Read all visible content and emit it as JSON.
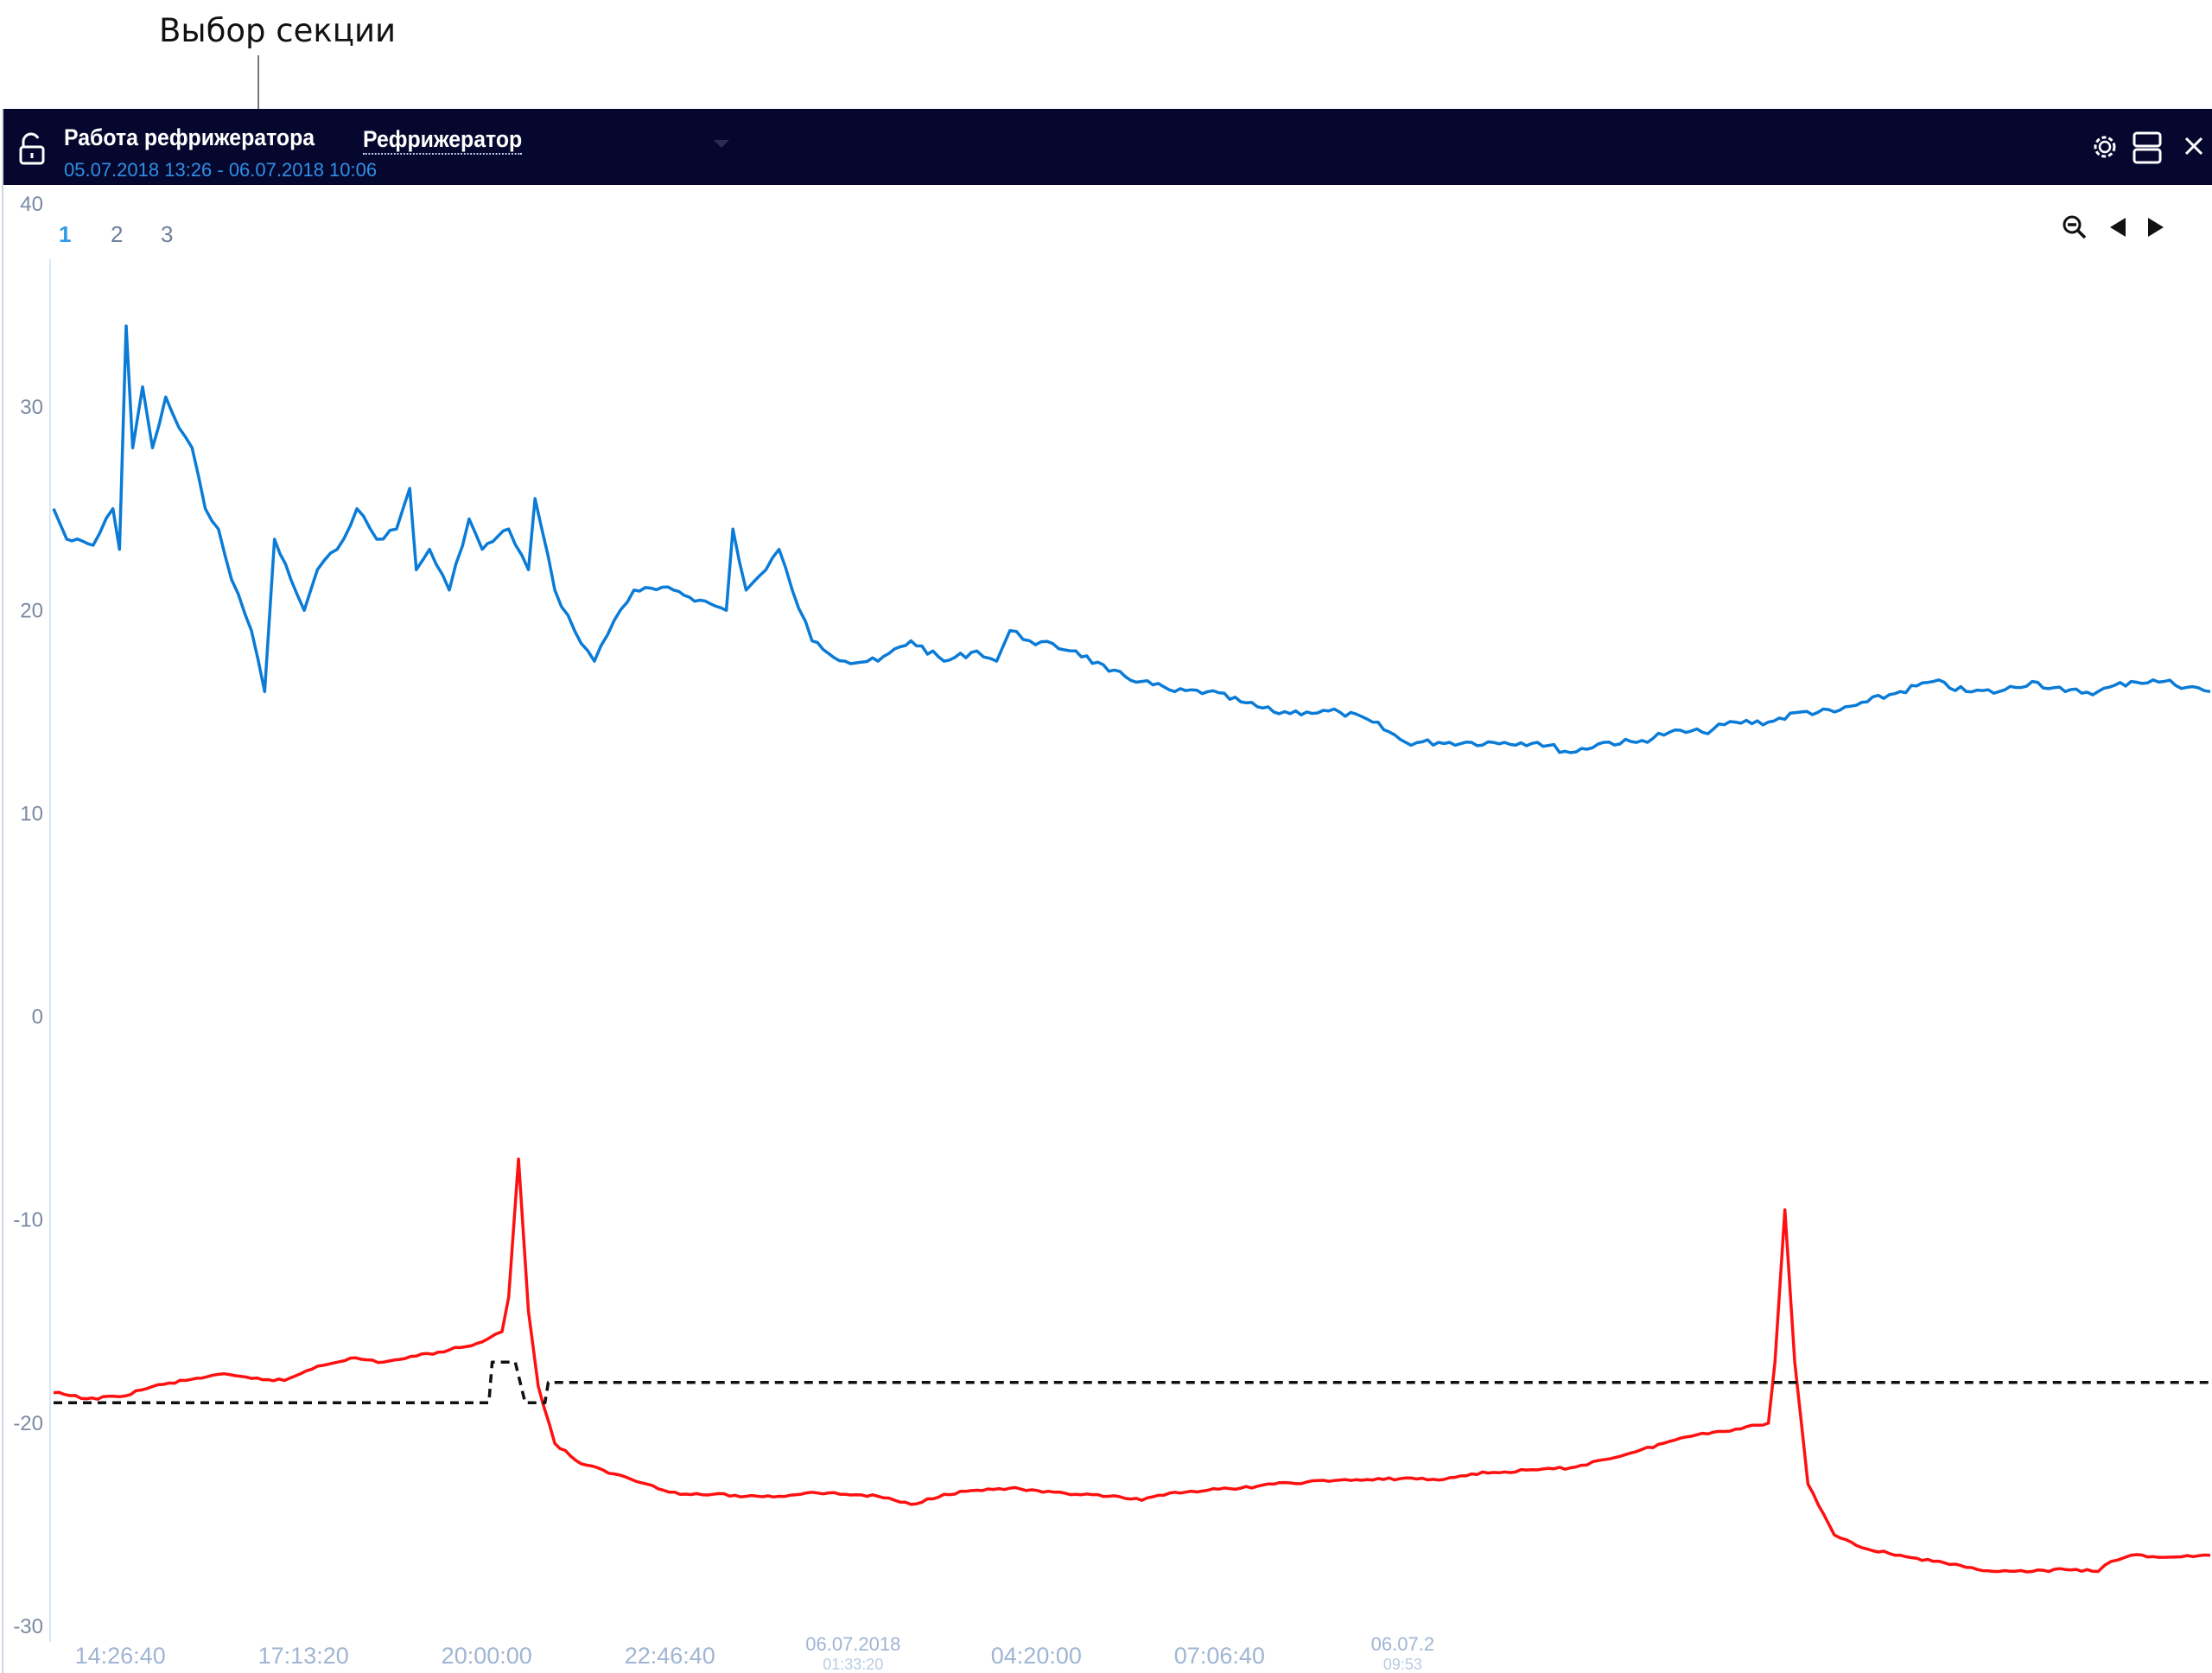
{
  "annotation": {
    "text": "Выбор секции"
  },
  "header": {
    "title": "Работа рефрижератора",
    "date_range": "05.07.2018 13:26 - 06.07.2018 10:06",
    "selector_value": "Рефрижератор",
    "icons": [
      "unlock-icon",
      "settings-icon",
      "layout-icon",
      "close-icon"
    ]
  },
  "sections": [
    "1",
    "2",
    "3"
  ],
  "active_section": "1",
  "tools": [
    "zoom-out-icon",
    "prev-arrow-icon",
    "next-arrow-icon"
  ],
  "colors": {
    "blue": "#0a7bd6",
    "red": "#ff1010",
    "dash": "#111111",
    "titlebar": "#06072e"
  },
  "chart_data": {
    "type": "line",
    "ylim": [
      -30,
      40
    ],
    "y_ticks": [
      "40",
      "30",
      "20",
      "10",
      "0",
      "-10",
      "-20",
      "-30"
    ],
    "x_ticks": [
      {
        "label": "14:26:40"
      },
      {
        "label": "17:13:20"
      },
      {
        "label": "20:00:00"
      },
      {
        "label": "22:46:40"
      },
      {
        "label": "06.07.2018",
        "sub": "01:33:20"
      },
      {
        "label": "04:20:00"
      },
      {
        "label": "07:06:40"
      },
      {
        "label": "06.07.2",
        "sub": "09:53"
      }
    ],
    "x_unit": "hours since 05.07.2018 13:26",
    "series": [
      {
        "color": "#0a7bd6",
        "points": [
          [
            0,
            25
          ],
          [
            0.2,
            23.5
          ],
          [
            0.6,
            23.2
          ],
          [
            0.9,
            25
          ],
          [
            1.0,
            23
          ],
          [
            1.1,
            34
          ],
          [
            1.2,
            28
          ],
          [
            1.35,
            31
          ],
          [
            1.5,
            28
          ],
          [
            1.7,
            30.5
          ],
          [
            1.9,
            29
          ],
          [
            2.1,
            28
          ],
          [
            2.3,
            25
          ],
          [
            2.5,
            24
          ],
          [
            2.7,
            21.5
          ],
          [
            3.0,
            19
          ],
          [
            3.2,
            16
          ],
          [
            3.35,
            23.5
          ],
          [
            3.6,
            21.5
          ],
          [
            3.8,
            20
          ],
          [
            4.0,
            22
          ],
          [
            4.3,
            23
          ],
          [
            4.6,
            25
          ],
          [
            4.9,
            23.5
          ],
          [
            5.2,
            24
          ],
          [
            5.4,
            26
          ],
          [
            5.5,
            22
          ],
          [
            5.7,
            23
          ],
          [
            6.0,
            21
          ],
          [
            6.3,
            24.5
          ],
          [
            6.5,
            23
          ],
          [
            6.9,
            24
          ],
          [
            7.2,
            22
          ],
          [
            7.3,
            25.5
          ],
          [
            7.6,
            21
          ],
          [
            7.9,
            19
          ],
          [
            8.2,
            17.5
          ],
          [
            8.5,
            19.5
          ],
          [
            8.8,
            21
          ],
          [
            9.4,
            21
          ],
          [
            9.8,
            20.5
          ],
          [
            10.2,
            20
          ],
          [
            10.3,
            24
          ],
          [
            10.5,
            21
          ],
          [
            10.8,
            22
          ],
          [
            11.0,
            23
          ],
          [
            11.2,
            21
          ],
          [
            11.5,
            18.5
          ],
          [
            12.0,
            17.5
          ],
          [
            12.5,
            17.5
          ],
          [
            13.0,
            18.5
          ],
          [
            13.5,
            17.5
          ],
          [
            14.0,
            18
          ],
          [
            14.3,
            17.5
          ],
          [
            14.5,
            19
          ],
          [
            14.8,
            18.5
          ],
          [
            15.5,
            18
          ],
          [
            16.0,
            17
          ],
          [
            16.5,
            16.5
          ],
          [
            17.0,
            16
          ],
          [
            17.5,
            16
          ],
          [
            18.0,
            15.5
          ],
          [
            18.5,
            15
          ],
          [
            19.0,
            15
          ],
          [
            19.5,
            15
          ],
          [
            20.0,
            14.5
          ],
          [
            20.5,
            13.5
          ],
          [
            21.0,
            13.5
          ],
          [
            21.5,
            13.5
          ],
          [
            22.0,
            13.5
          ],
          [
            22.5,
            13.5
          ],
          [
            23.0,
            13
          ],
          [
            23.5,
            13.5
          ],
          [
            24.0,
            13.5
          ],
          [
            24.5,
            14
          ],
          [
            25.0,
            14
          ],
          [
            25.5,
            14.5
          ],
          [
            26.0,
            14.5
          ],
          [
            26.5,
            15
          ],
          [
            27.0,
            15
          ],
          [
            27.5,
            15.5
          ],
          [
            28.0,
            16
          ],
          [
            28.5,
            16.5
          ],
          [
            29.0,
            16
          ],
          [
            29.5,
            16
          ],
          [
            30.0,
            16.5
          ],
          [
            30.5,
            16
          ],
          [
            31.0,
            16
          ],
          [
            31.5,
            16.5
          ],
          [
            32.0,
            16.5
          ],
          [
            32.7,
            16
          ]
        ]
      },
      {
        "color": "#ff1010",
        "points": [
          [
            0,
            -18.5
          ],
          [
            0.5,
            -18.8
          ],
          [
            1.0,
            -18.7
          ],
          [
            1.5,
            -18.2
          ],
          [
            2.0,
            -17.9
          ],
          [
            2.5,
            -17.6
          ],
          [
            3.0,
            -17.8
          ],
          [
            3.5,
            -17.9
          ],
          [
            4.0,
            -17.2
          ],
          [
            4.5,
            -16.8
          ],
          [
            5.0,
            -17
          ],
          [
            5.5,
            -16.7
          ],
          [
            6.0,
            -16.4
          ],
          [
            6.5,
            -16
          ],
          [
            6.8,
            -15.5
          ],
          [
            6.9,
            -13.8
          ],
          [
            7.05,
            -7
          ],
          [
            7.2,
            -14.5
          ],
          [
            7.35,
            -18.2
          ],
          [
            7.6,
            -21
          ],
          [
            8.0,
            -22
          ],
          [
            8.5,
            -22.5
          ],
          [
            9.0,
            -23
          ],
          [
            9.5,
            -23.5
          ],
          [
            10.0,
            -23.5
          ],
          [
            10.5,
            -23.6
          ],
          [
            11.0,
            -23.6
          ],
          [
            11.5,
            -23.4
          ],
          [
            12.0,
            -23.5
          ],
          [
            12.5,
            -23.6
          ],
          [
            13.0,
            -24
          ],
          [
            13.5,
            -23.5
          ],
          [
            14.0,
            -23.3
          ],
          [
            14.5,
            -23.2
          ],
          [
            15.0,
            -23.4
          ],
          [
            15.5,
            -23.5
          ],
          [
            16.0,
            -23.6
          ],
          [
            16.5,
            -23.8
          ],
          [
            17.0,
            -23.4
          ],
          [
            17.5,
            -23.3
          ],
          [
            18.0,
            -23.2
          ],
          [
            18.5,
            -23
          ],
          [
            19.0,
            -22.9
          ],
          [
            19.5,
            -22.8
          ],
          [
            20.0,
            -22.8
          ],
          [
            20.5,
            -22.7
          ],
          [
            21.0,
            -22.8
          ],
          [
            21.5,
            -22.5
          ],
          [
            22.0,
            -22.4
          ],
          [
            22.5,
            -22.3
          ],
          [
            23.0,
            -22.2
          ],
          [
            23.5,
            -21.8
          ],
          [
            24.0,
            -21.4
          ],
          [
            24.5,
            -20.9
          ],
          [
            25.0,
            -20.5
          ],
          [
            25.5,
            -20.3
          ],
          [
            26.0,
            -20
          ],
          [
            26.1,
            -17
          ],
          [
            26.25,
            -9.5
          ],
          [
            26.4,
            -17
          ],
          [
            26.6,
            -23
          ],
          [
            27.0,
            -25.5
          ],
          [
            27.5,
            -26.2
          ],
          [
            28.0,
            -26.5
          ],
          [
            28.5,
            -26.8
          ],
          [
            29.0,
            -27.1
          ],
          [
            29.5,
            -27.3
          ],
          [
            30.0,
            -27.3
          ],
          [
            30.5,
            -27.2
          ],
          [
            31.0,
            -27.3
          ],
          [
            31.2,
            -26.8
          ],
          [
            31.5,
            -26.5
          ],
          [
            32.0,
            -26.6
          ],
          [
            32.7,
            -26.5
          ]
        ]
      },
      {
        "color": "#111111",
        "dashed": true,
        "points": [
          [
            0,
            -19
          ],
          [
            6.6,
            -19
          ],
          [
            6.65,
            -17
          ],
          [
            7.0,
            -17
          ],
          [
            7.15,
            -19
          ],
          [
            7.45,
            -19
          ],
          [
            7.5,
            -18
          ],
          [
            32.7,
            -18
          ]
        ]
      }
    ]
  }
}
